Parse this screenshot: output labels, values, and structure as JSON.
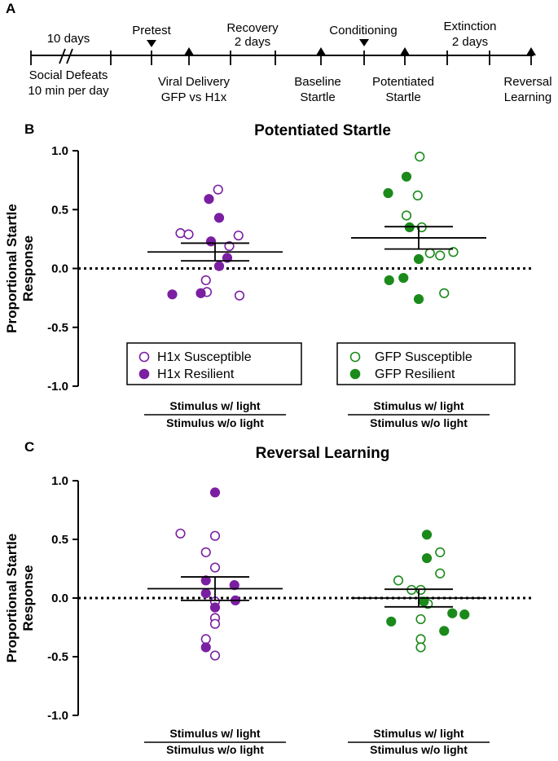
{
  "figure": {
    "panel_letters": [
      "A",
      "B",
      "C"
    ]
  },
  "timeline": {
    "above": {
      "ten_days": "10 days",
      "pretest": "Pretest",
      "recovery_1": "Recovery",
      "recovery_2": "2 days",
      "conditioning": "Conditioning",
      "extinction_1": "Extinction",
      "extinction_2": "2 days"
    },
    "below": {
      "social_1": "Social Defeats",
      "social_2": "10 min per day",
      "viral_1": "Viral Delivery",
      "viral_2": "GFP vs H1x",
      "baseline_1": "Baseline",
      "baseline_2": "Startle",
      "potentiated_1": "Potentiated",
      "potentiated_2": "Startle",
      "reversal_1": "Reversal",
      "reversal_2": "Learning"
    }
  },
  "colors": {
    "h1x": "#7b1fa2",
    "gfp": "#1b8a1b",
    "axis": "#000000"
  },
  "chart_data": [
    {
      "type": "scatter",
      "title": "Potentiated Startle",
      "ylabel": "Proportional Startle Response",
      "ylabel_lines": [
        "Proportional Startle",
        "Response"
      ],
      "ylim": [
        -1.0,
        1.0
      ],
      "yticks": [
        1.0,
        0.5,
        0.0,
        -0.5,
        -1.0
      ],
      "ytick_labels": [
        "1.0",
        "0.5",
        "0.0",
        "-0.5",
        "-1.0"
      ],
      "reference_line_y": 0.0,
      "categories": [
        {
          "line1": "Stimulus w/ light",
          "line2": "Stimulus w/o light"
        },
        {
          "line1": "Stimulus w/ light",
          "line2": "Stimulus w/o light"
        }
      ],
      "groups": [
        {
          "name": "H1x",
          "color_key": "h1x",
          "mean": 0.14,
          "sem": 0.075,
          "susceptible": [
            [
              -0.34,
              0.3
            ],
            [
              -0.26,
              0.29
            ],
            [
              -0.09,
              -0.1
            ],
            [
              -0.08,
              -0.2
            ],
            [
              0.03,
              0.67
            ],
            [
              0.14,
              0.19
            ],
            [
              0.23,
              0.28
            ],
            [
              0.24,
              -0.23
            ]
          ],
          "resilient": [
            [
              -0.42,
              -0.22
            ],
            [
              -0.14,
              -0.21
            ],
            [
              -0.06,
              0.59
            ],
            [
              -0.04,
              0.23
            ],
            [
              0.04,
              0.43
            ],
            [
              0.04,
              0.02
            ],
            [
              0.12,
              0.09
            ]
          ]
        },
        {
          "name": "GFP",
          "color_key": "gfp",
          "mean": 0.26,
          "sem": 0.095,
          "susceptible": [
            [
              -0.12,
              0.45
            ],
            [
              -0.01,
              0.62
            ],
            [
              0.01,
              0.95
            ],
            [
              0.03,
              0.35
            ],
            [
              0.11,
              0.13
            ],
            [
              0.21,
              0.11
            ],
            [
              0.25,
              -0.21
            ],
            [
              0.34,
              0.14
            ]
          ],
          "resilient": [
            [
              -0.3,
              0.64
            ],
            [
              -0.29,
              -0.1
            ],
            [
              -0.15,
              -0.08
            ],
            [
              -0.12,
              0.78
            ],
            [
              -0.09,
              0.35
            ],
            [
              0.0,
              0.08
            ],
            [
              0.0,
              -0.26
            ]
          ]
        }
      ],
      "legend": [
        {
          "items": [
            {
              "label": "H1x Susceptible",
              "style": "open"
            },
            {
              "label": "H1x Resilient",
              "style": "filled"
            }
          ]
        },
        {
          "items": [
            {
              "label": "GFP Susceptible",
              "style": "open"
            },
            {
              "label": "GFP Resilient",
              "style": "filled"
            }
          ]
        }
      ]
    },
    {
      "type": "scatter",
      "title": "Reversal Learning",
      "ylabel": "Proportional Startle Response",
      "ylabel_lines": [
        "Proportional Startle",
        "Response"
      ],
      "ylim": [
        -1.0,
        1.0
      ],
      "yticks": [
        1.0,
        0.5,
        0.0,
        -0.5,
        -1.0
      ],
      "ytick_labels": [
        "1.0",
        "0.5",
        "0.0",
        "-0.5",
        "-1.0"
      ],
      "reference_line_y": 0.0,
      "categories": [
        {
          "line1": "Stimulus w/ light",
          "line2": "Stimulus w/o light"
        },
        {
          "line1": "Stimulus w/ light",
          "line2": "Stimulus w/o light"
        }
      ],
      "groups": [
        {
          "name": "H1x",
          "color_key": "h1x",
          "mean": 0.08,
          "sem": 0.1,
          "susceptible": [
            [
              -0.34,
              0.55
            ],
            [
              -0.09,
              0.39
            ],
            [
              -0.09,
              -0.35
            ],
            [
              0.0,
              0.26
            ],
            [
              0.0,
              0.53
            ],
            [
              0.0,
              -0.03
            ],
            [
              0.0,
              -0.17
            ],
            [
              0.0,
              -0.22
            ],
            [
              0.0,
              -0.49
            ]
          ],
          "resilient": [
            [
              -0.09,
              0.15
            ],
            [
              -0.09,
              0.04
            ],
            [
              -0.09,
              -0.42
            ],
            [
              0.0,
              0.9
            ],
            [
              0.0,
              -0.08
            ],
            [
              0.19,
              0.11
            ],
            [
              0.2,
              -0.02
            ]
          ]
        },
        {
          "name": "GFP",
          "color_key": "gfp",
          "mean": 0.0,
          "sem": 0.075,
          "susceptible": [
            [
              -0.2,
              0.15
            ],
            [
              -0.07,
              0.07
            ],
            [
              0.02,
              0.07
            ],
            [
              0.02,
              -0.18
            ],
            [
              0.02,
              -0.35
            ],
            [
              0.02,
              -0.42
            ],
            [
              0.09,
              -0.05
            ],
            [
              0.21,
              0.21
            ],
            [
              0.21,
              0.39
            ]
          ],
          "resilient": [
            [
              -0.27,
              -0.2
            ],
            [
              0.08,
              0.54
            ],
            [
              0.08,
              0.34
            ],
            [
              0.05,
              -0.03
            ],
            [
              0.25,
              -0.28
            ],
            [
              0.33,
              -0.13
            ],
            [
              0.45,
              -0.14
            ]
          ]
        }
      ]
    }
  ]
}
